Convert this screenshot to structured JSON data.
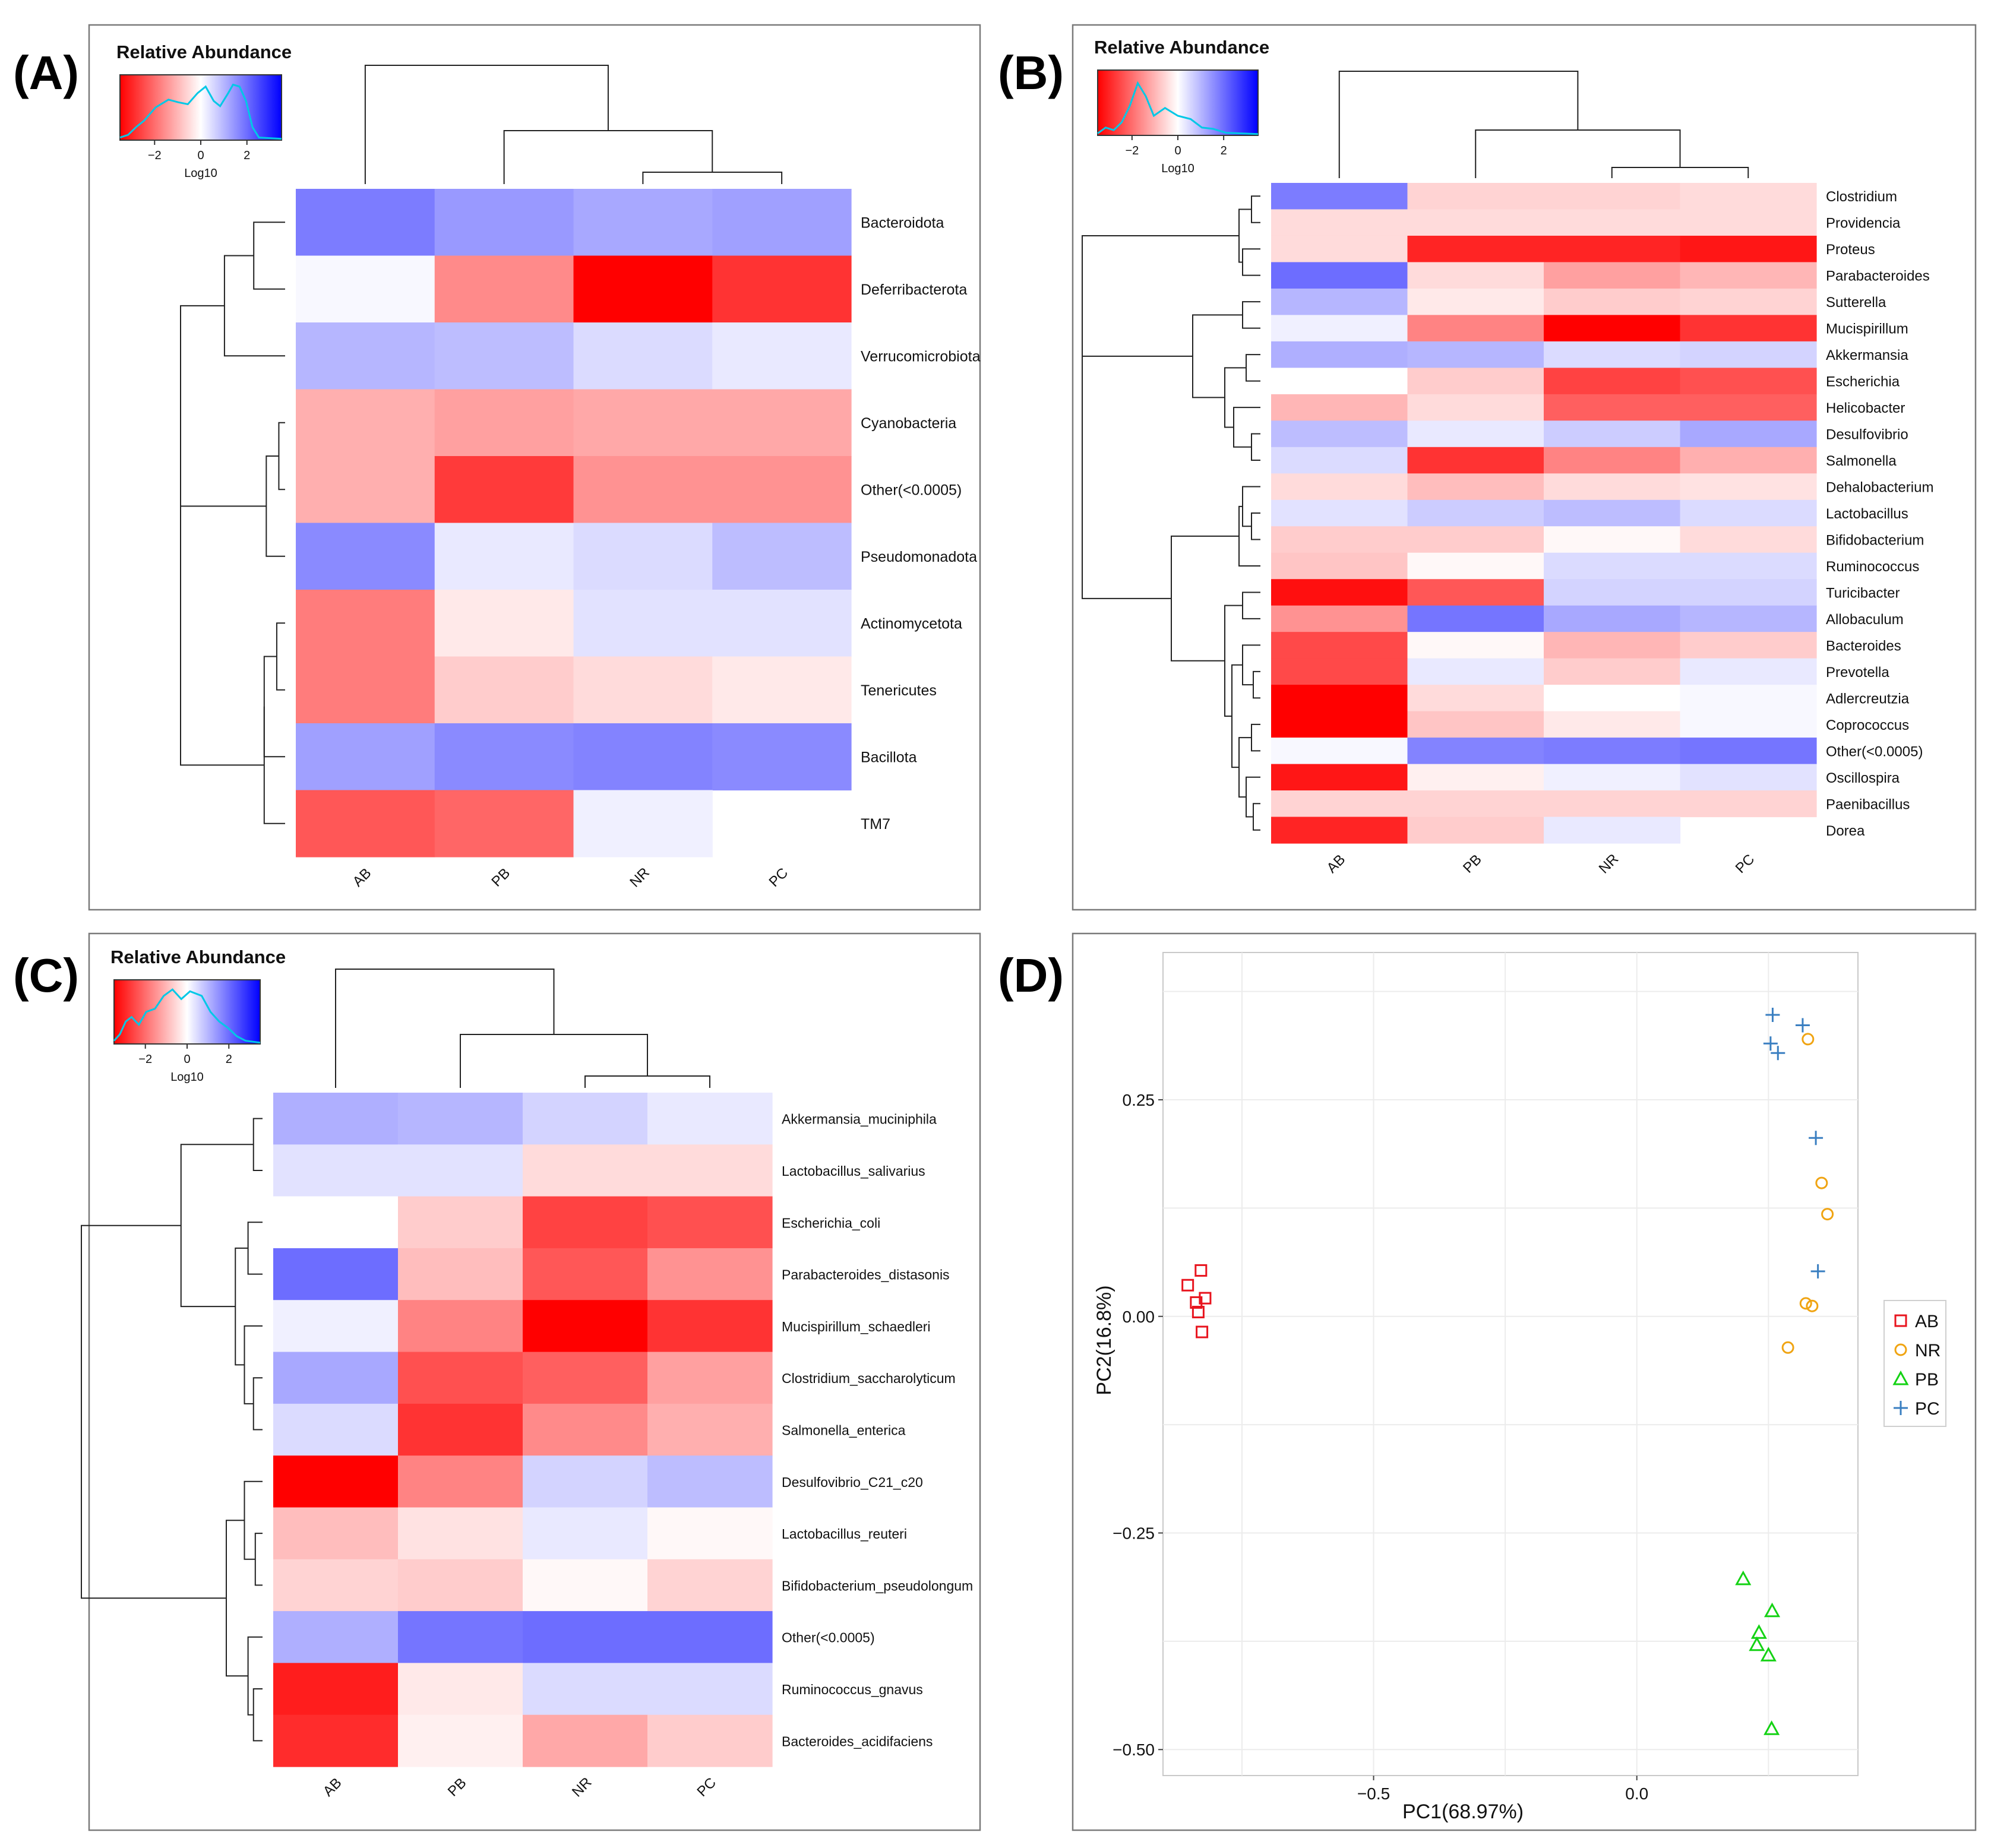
{
  "figure": {
    "panel_labels": [
      "(A)",
      "(B)",
      "(C)",
      "(D)"
    ],
    "scale_title": "Relative Abundance",
    "scale_axis_label": "Log10",
    "scale_ticks": [
      "−2",
      "0",
      "2"
    ],
    "colors": {
      "low": "#ff0000",
      "mid": "#ffffff",
      "high": "#0000ff",
      "density": "#00c8e6"
    }
  },
  "chart_data": [
    {
      "panel": "A",
      "type": "heatmap",
      "title": "Relative Abundance",
      "colorbar_label": "Log10",
      "colorbar_range": [
        -3.5,
        3.5
      ],
      "columns": [
        "AB",
        "PB",
        "NR",
        "PC"
      ],
      "rows": [
        "Bacteroidota",
        "Deferribacterota",
        "Verrucomicrobiota",
        "Cyanobacteria",
        "Other(<0.0005)",
        "Pseudomonadota",
        "Actinomycetota",
        "Tenericutes",
        "Bacillota",
        "TM7"
      ],
      "values": [
        [
          1.8,
          1.4,
          1.2,
          1.3
        ],
        [
          0.1,
          -1.6,
          -3.5,
          -2.8
        ],
        [
          1.0,
          0.9,
          0.5,
          0.3
        ],
        [
          -1.1,
          -1.3,
          -1.2,
          -1.2
        ],
        [
          -1.1,
          -2.7,
          -1.5,
          -1.5
        ],
        [
          1.6,
          0.3,
          0.5,
          0.9
        ],
        [
          -1.8,
          -0.3,
          0.4,
          0.4
        ],
        [
          -1.8,
          -0.7,
          -0.5,
          -0.3
        ],
        [
          1.3,
          1.6,
          1.7,
          1.6
        ],
        [
          -2.3,
          -2.1,
          0.2,
          null
        ]
      ]
    },
    {
      "panel": "B",
      "type": "heatmap",
      "title": "Relative Abundance",
      "colorbar_label": "Log10",
      "colorbar_range": [
        -3.5,
        3.5
      ],
      "columns": [
        "AB",
        "PB",
        "NR",
        "PC"
      ],
      "rows": [
        "Clostridium",
        "Providencia",
        "Proteus",
        "Parabacteroides",
        "Sutterella",
        "Mucispirillum",
        "Akkermansia",
        "Escherichia",
        "Helicobacter",
        "Desulfovibrio",
        "Salmonella",
        "Dehalobacterium",
        "Lactobacillus",
        "Bifidobacterium",
        "Ruminococcus",
        "Turicibacter",
        "Allobaculum",
        "Bacteroides",
        "Prevotella",
        "Adlercreutzia",
        "Coprococcus",
        "Other(<0.0005)",
        "Oscillospira",
        "Paenibacillus",
        "Dorea"
      ],
      "values": [
        [
          1.8,
          -0.6,
          -0.6,
          -0.5
        ],
        [
          -0.5,
          -0.5,
          -0.5,
          -0.5
        ],
        [
          -0.5,
          -3.0,
          -3.0,
          -3.2
        ],
        [
          2.0,
          -0.5,
          -1.3,
          -1.0
        ],
        [
          1.0,
          -0.3,
          -0.7,
          -0.6
        ],
        [
          0.2,
          -1.7,
          -3.5,
          -2.8
        ],
        [
          1.1,
          1.0,
          0.5,
          0.6
        ],
        [
          0.0,
          -0.7,
          -2.6,
          -2.4
        ],
        [
          -1.0,
          -0.5,
          -2.2,
          -2.2
        ],
        [
          0.9,
          0.3,
          0.7,
          1.2
        ],
        [
          0.5,
          -2.8,
          -1.7,
          -1.1
        ],
        [
          -0.5,
          -0.9,
          -0.5,
          -0.4
        ],
        [
          0.4,
          0.7,
          0.9,
          0.5
        ],
        [
          -0.7,
          -0.7,
          -0.1,
          -0.5
        ],
        [
          -0.8,
          -0.1,
          0.5,
          0.5
        ],
        [
          -3.3,
          -2.3,
          0.6,
          0.6
        ],
        [
          -1.5,
          1.9,
          1.2,
          1.0
        ],
        [
          -2.5,
          -0.1,
          -1.0,
          -0.7
        ],
        [
          -2.5,
          0.3,
          -0.7,
          0.3
        ],
        [
          -3.5,
          -0.5,
          0.0,
          0.1
        ],
        [
          -3.5,
          -0.8,
          -0.3,
          0.1
        ],
        [
          0.1,
          1.7,
          1.8,
          1.9
        ],
        [
          -3.2,
          -0.2,
          0.2,
          0.4
        ],
        [
          -0.6,
          -0.6,
          -0.6,
          -0.6
        ],
        [
          -3.0,
          -0.7,
          0.3,
          null
        ]
      ]
    },
    {
      "panel": "C",
      "type": "heatmap",
      "title": "Relative Abundance",
      "colorbar_label": "Log10",
      "colorbar_range": [
        -3.5,
        3.5
      ],
      "columns": [
        "AB",
        "PB",
        "NR",
        "PC"
      ],
      "rows": [
        "Akkermansia_muciniphila",
        "Lactobacillus_salivarius",
        "Escherichia_coli",
        "Parabacteroides_distasonis",
        "Mucispirillum_schaedleri",
        "Clostridium_saccharolyticum",
        "Salmonella_enterica",
        "Desulfovibrio_C21_c20",
        "Lactobacillus_reuteri",
        "Bifidobacterium_pseudolongum",
        "Other(<0.0005)",
        "Ruminococcus_gnavus",
        "Bacteroides_acidifaciens"
      ],
      "values": [
        [
          1.1,
          1.0,
          0.6,
          0.3
        ],
        [
          0.4,
          0.4,
          -0.5,
          -0.5
        ],
        [
          0.0,
          -0.7,
          -2.6,
          -2.4
        ],
        [
          2.0,
          -0.9,
          -2.3,
          -1.5
        ],
        [
          0.2,
          -1.7,
          -3.5,
          -2.8
        ],
        [
          1.2,
          -2.4,
          -2.2,
          -1.3
        ],
        [
          0.5,
          -2.8,
          -1.6,
          -1.1
        ],
        [
          -3.5,
          -1.7,
          0.6,
          0.9
        ],
        [
          -0.9,
          -0.4,
          0.3,
          -0.1
        ],
        [
          -0.6,
          -0.7,
          -0.1,
          -0.6
        ],
        [
          1.1,
          1.9,
          2.0,
          2.0
        ],
        [
          -3.1,
          -0.3,
          0.5,
          0.5
        ],
        [
          -2.9,
          -0.2,
          -1.2,
          -0.7
        ]
      ]
    },
    {
      "panel": "D",
      "type": "scatter",
      "xlabel": "PC1(68.97%)",
      "ylabel": "PC2(16.8%)",
      "xlim": [
        -0.9,
        0.42
      ],
      "ylim": [
        -0.53,
        0.42
      ],
      "xticks": [
        -0.5,
        0.0
      ],
      "yticks": [
        0.25,
        0.0,
        -0.25,
        -0.5
      ],
      "xtick_labels": [
        "−0.5",
        "0.0"
      ],
      "ytick_labels": [
        "0.25",
        "0.00",
        "−0.25",
        "−0.50"
      ],
      "legend_position": "right",
      "series": [
        {
          "name": "AB",
          "marker": "square",
          "color": "#e8141e",
          "x": [
            -0.853,
            -0.828,
            -0.82,
            -0.837,
            -0.833,
            -0.826
          ],
          "y": [
            0.036,
            0.053,
            0.021,
            0.016,
            0.005,
            -0.018
          ]
        },
        {
          "name": "NR",
          "marker": "circle",
          "color": "#f0a412",
          "x": [
            0.325,
            0.351,
            0.362,
            0.321,
            0.333,
            0.287
          ],
          "y": [
            0.32,
            0.154,
            0.118,
            0.015,
            0.012,
            -0.036
          ]
        },
        {
          "name": "PB",
          "marker": "triangle",
          "color": "#14d214",
          "x": [
            0.202,
            0.257,
            0.232,
            0.228,
            0.25,
            0.256
          ],
          "y": [
            -0.303,
            -0.34,
            -0.365,
            -0.379,
            -0.391,
            -0.476
          ]
        },
        {
          "name": "PC",
          "marker": "plus",
          "color": "#3a7fc1",
          "x": [
            0.258,
            0.315,
            0.254,
            0.268,
            0.34,
            0.344
          ],
          "y": [
            0.348,
            0.336,
            0.315,
            0.304,
            0.206,
            0.052
          ]
        }
      ]
    }
  ]
}
